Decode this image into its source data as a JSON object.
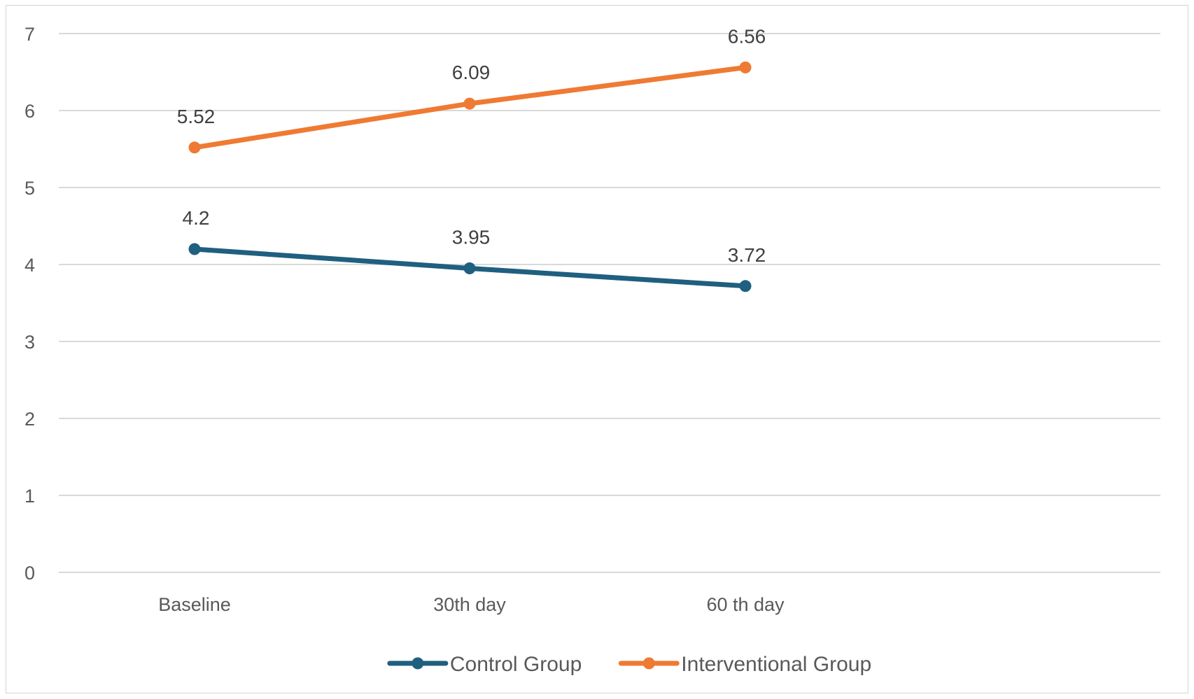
{
  "chart_data": {
    "type": "line",
    "categories": [
      "Baseline",
      "30th day",
      "60 th day"
    ],
    "series": [
      {
        "name": "Control Group",
        "values": [
          4.2,
          3.95,
          3.72
        ],
        "labels": [
          "4.2",
          "3.95",
          "3.72"
        ],
        "color": "#1f5f7f"
      },
      {
        "name": "Interventional Group",
        "values": [
          5.52,
          6.09,
          6.56
        ],
        "labels": [
          "5.52",
          "6.09",
          "6.56"
        ],
        "color": "#ef7a33"
      }
    ],
    "ylim": [
      0,
      7
    ],
    "yticks": [
      "0",
      "1",
      "2",
      "3",
      "4",
      "5",
      "6",
      "7"
    ],
    "grid": true,
    "legend_position": "bottom",
    "title": "",
    "xlabel": "",
    "ylabel": ""
  }
}
